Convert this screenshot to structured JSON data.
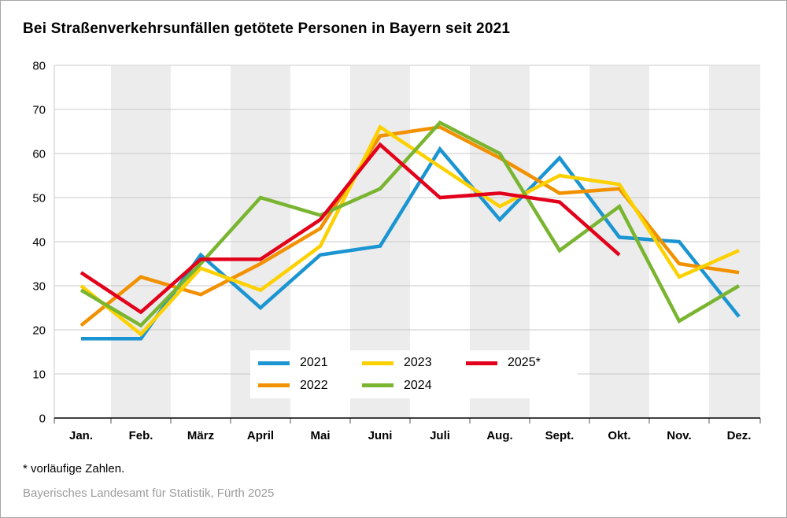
{
  "title": "Bei Straßenverkehrsunfällen getötete Personen in Bayern seit 2021",
  "footnote": "* vorläufige Zahlen.",
  "source": "Bayerisches Landesamt für Statistik, Fürth 2025",
  "chart_data": {
    "type": "line",
    "title": "Bei Straßenverkehrsunfällen getötete Personen in Bayern seit 2021",
    "xlabel": "",
    "ylabel": "",
    "categories": [
      "Jan.",
      "Feb.",
      "März",
      "April",
      "Mai",
      "Juni",
      "Juli",
      "Aug.",
      "Sept.",
      "Okt.",
      "Nov.",
      "Dez."
    ],
    "y_ticks": [
      0,
      10,
      20,
      30,
      40,
      50,
      60,
      70,
      80
    ],
    "ylim": [
      0,
      80
    ],
    "grid": true,
    "band_color": "#ececec",
    "grid_color": "#c9c9c9",
    "axis_color": "#000000",
    "legend_position": "inside-bottom",
    "series": [
      {
        "name": "2021",
        "color": "#1b95d2",
        "values": [
          18,
          18,
          37,
          25,
          37,
          39,
          61,
          45,
          59,
          41,
          40,
          23
        ]
      },
      {
        "name": "2022",
        "color": "#f29100",
        "values": [
          21,
          32,
          28,
          35,
          43,
          64,
          66,
          59,
          51,
          52,
          35,
          33
        ]
      },
      {
        "name": "2023",
        "color": "#fdd000",
        "values": [
          30,
          19,
          34,
          29,
          39,
          66,
          57,
          48,
          55,
          53,
          32,
          38
        ]
      },
      {
        "name": "2024",
        "color": "#79b530",
        "values": [
          29,
          21,
          35,
          50,
          46,
          52,
          67,
          60,
          38,
          48,
          22,
          30
        ]
      },
      {
        "name": "2025*",
        "color": "#e2001a",
        "values": [
          33,
          24,
          36,
          36,
          45,
          62,
          50,
          51,
          49,
          37
        ]
      }
    ]
  }
}
